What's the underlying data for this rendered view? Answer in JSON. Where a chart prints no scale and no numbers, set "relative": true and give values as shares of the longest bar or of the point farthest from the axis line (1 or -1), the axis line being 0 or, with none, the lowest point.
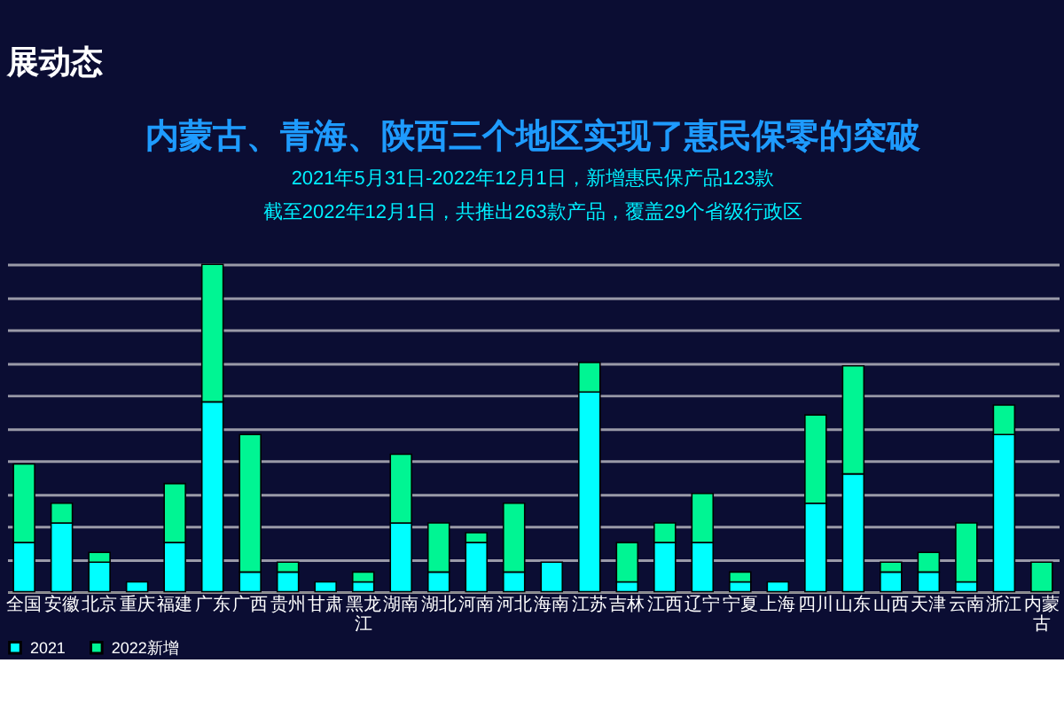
{
  "chart_data": {
    "type": "bar",
    "title": "内蒙古、青海、陕西三个地区实现了惠民保零的突破",
    "subtitle": [
      "2021年5月31日-2022年12月1日，新增惠民保产品123款",
      "截至2022年12月1日，共推出263款产品，覆盖29个省级行政区"
    ],
    "annotations": [
      "展动态"
    ],
    "categories": [
      "全国",
      "安徽",
      "北京",
      "重庆",
      "福建",
      "广东",
      "广西",
      "贵州",
      "甘肃",
      "黑龙江",
      "湖南",
      "湖北",
      "河南",
      "河北",
      "海南",
      "江苏",
      "吉林",
      "江西",
      "辽宁",
      "宁夏",
      "上海",
      "四川",
      "山东",
      "山西",
      "天津",
      "云南",
      "浙江",
      "内蒙古"
    ],
    "relative": true,
    "stacked": true,
    "grid": "y",
    "legend": "bottom",
    "series": [
      {
        "name": "2021",
        "color": "#00ffff",
        "values": [
          0.15,
          0.21,
          0.09,
          0.03,
          0.15,
          0.58,
          0.06,
          0.06,
          0.03,
          0.03,
          0.21,
          0.06,
          0.15,
          0.06,
          0.09,
          0.61,
          0.03,
          0.15,
          0.15,
          0.03,
          0.03,
          0.27,
          0.36,
          0.06,
          0.06,
          0.03,
          0.48,
          0
        ]
      },
      {
        "name": "2022新增",
        "color": "#00f593",
        "values": [
          0.24,
          0.06,
          0.03,
          0,
          0.18,
          0.42,
          0.42,
          0.03,
          0,
          0.03,
          0.21,
          0.15,
          0.03,
          0.21,
          0,
          0.09,
          0.12,
          0.06,
          0.15,
          0.03,
          0,
          0.27,
          0.33,
          0.03,
          0.06,
          0.18,
          0.09,
          0.09
        ]
      }
    ]
  }
}
